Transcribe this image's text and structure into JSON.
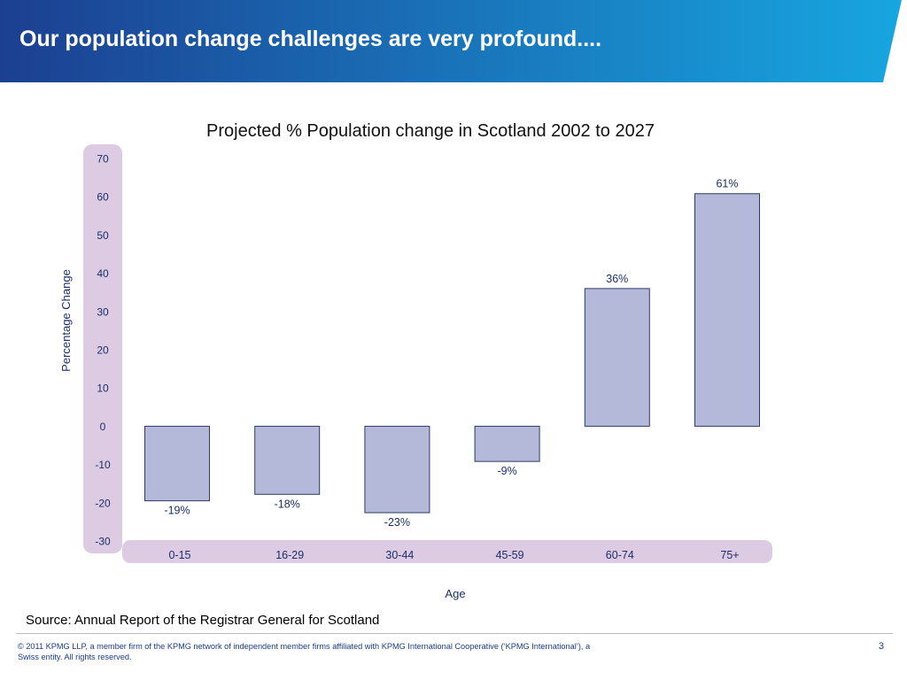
{
  "slide": {
    "title": "Our population change challenges are very profound....",
    "page_number": "3"
  },
  "colors": {
    "header_gradient_start": "#1c3f91",
    "header_gradient_end": "#17a6e0",
    "bar_fill": "#b4b9da",
    "bar_stroke": "#2d3a66",
    "axis_band": "#dccbe3",
    "text_navy": "#1b2f6b"
  },
  "source": "Source:  Annual Report of the Registrar General for Scotland",
  "footer": {
    "copyright": "© 2011 KPMG LLP, a member firm of the KPMG network of independent member firms affiliated with KPMG International Cooperative (‘KPMG International’), a Swiss entity. All rights reserved."
  },
  "chart_data": {
    "type": "bar",
    "title": "Projected % Population change in Scotland 2002 to 2027",
    "xlabel": "Age",
    "ylabel": "Percentage Change",
    "categories": [
      "0-15",
      "16-29",
      "30-44",
      "45-59",
      "60-74",
      "75+"
    ],
    "values": [
      -19.5,
      -17.8,
      -22.6,
      -9.2,
      36,
      60.8
    ],
    "data_labels": [
      "-19%",
      "-18%",
      "-23%",
      "-9%",
      "36%",
      "61%"
    ],
    "ylim": [
      -30,
      70
    ],
    "yticks": [
      70,
      60,
      50,
      40,
      30,
      20,
      10,
      0,
      -10,
      -20,
      -30
    ],
    "grid": false,
    "legend": "none"
  }
}
